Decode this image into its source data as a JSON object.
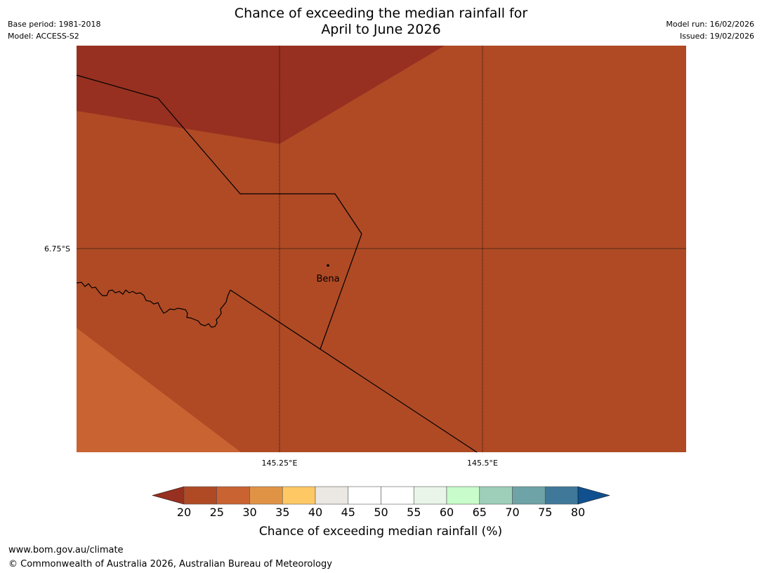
{
  "title_line1": "Chance of exceeding the median rainfall for",
  "title_line2": "April to June 2026",
  "meta_left": {
    "base_period": "Base period: 1981-2018",
    "model": "Model: ACCESS-S2"
  },
  "meta_right": {
    "model_run": "Model run: 16/02/2026",
    "issued": "Issued: 19/02/2026"
  },
  "map": {
    "lat_label": "6.75°S",
    "lon_labels": [
      "145.25°E",
      "145.5°E"
    ],
    "place": "Bena"
  },
  "colorbar": {
    "label": "Chance of exceeding median rainfall (%)",
    "ticks": [
      "20",
      "25",
      "30",
      "35",
      "40",
      "45",
      "50",
      "55",
      "60",
      "65",
      "70",
      "75",
      "80"
    ],
    "under_color": "#973020",
    "over_color": "#11508f",
    "colors": [
      "#af4a25",
      "#c96332",
      "#e19345",
      "#fec964",
      "#ebe8e4",
      "#ffffff",
      "#ffffff",
      "#e8f5e8",
      "#c8fcca",
      "#9dcfb9",
      "#6ea3a7",
      "#3f7898"
    ]
  },
  "footer": {
    "url": "www.bom.gov.au/climate",
    "copyright": "© Commonwealth of Australia 2026, Australian Bureau of Meteorology"
  }
}
